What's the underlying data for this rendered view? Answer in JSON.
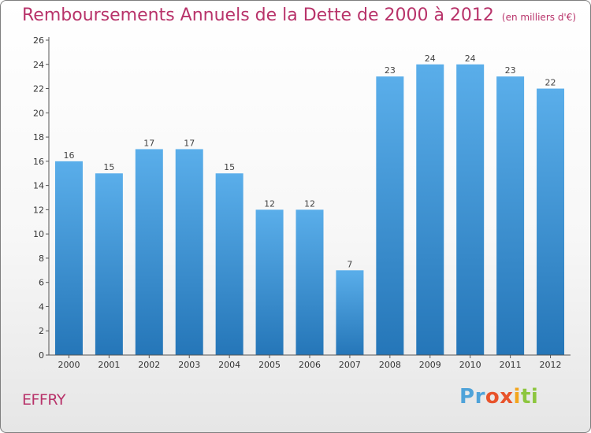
{
  "header": {
    "title": "Remboursements Annuels de la Dette de 2000 à 2012",
    "unit": "(en milliers d'€)"
  },
  "footer": {
    "place": "EFFRY",
    "logo_text": "Proxiti"
  },
  "colors": {
    "title": "#b8336a",
    "bar_top": "#5aaeea",
    "bar_bottom": "#2576b8"
  },
  "chart_data": {
    "type": "bar",
    "title": "Remboursements Annuels de la Dette de 2000 à 2012",
    "subtitle": "(en milliers d'€)",
    "xlabel": "",
    "ylabel": "",
    "categories": [
      "2000",
      "2001",
      "2002",
      "2003",
      "2004",
      "2005",
      "2006",
      "2007",
      "2008",
      "2009",
      "2010",
      "2011",
      "2012"
    ],
    "values": [
      16,
      15,
      17,
      17,
      15,
      12,
      12,
      7,
      23,
      24,
      24,
      23,
      22
    ],
    "data_labels": [
      "16",
      "15",
      "17",
      "17",
      "15",
      "12",
      "12",
      "7",
      "23",
      "24",
      "24",
      "23",
      "22"
    ],
    "ylim": [
      0,
      26
    ],
    "yticks": [
      0,
      2,
      4,
      6,
      8,
      10,
      12,
      14,
      16,
      18,
      20,
      22,
      24,
      26
    ],
    "grid": false,
    "legend": "none"
  }
}
